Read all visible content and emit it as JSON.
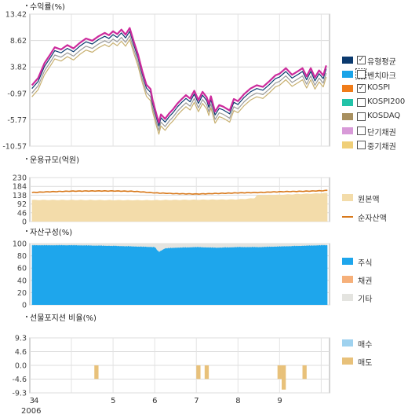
{
  "chart_data": [
    {
      "type": "line",
      "title": "수익률(%)",
      "yticks": [
        "13.42",
        "8.62",
        "3.82",
        "-0.97",
        "-5.77",
        "-10.57"
      ],
      "ylim": [
        -10.57,
        13.42
      ],
      "grid": true,
      "legend_position": "right",
      "x_tick_labels": [
        {
          "label": "3",
          "month": 3.05
        },
        {
          "label": "4",
          "month": 3.15
        },
        {
          "label": "5",
          "month": 5.0
        },
        {
          "label": "6",
          "month": 6.0
        },
        {
          "label": "7",
          "month": 7.0
        },
        {
          "label": "8",
          "month": 8.0
        },
        {
          "label": "9",
          "month": 9.0
        }
      ],
      "x_year_label": "2006",
      "xlim_month": [
        3.0,
        10.2
      ],
      "series": [
        {
          "name": "유형평균",
          "color": "#0b3a6e",
          "checked": true
        },
        {
          "name": "벤치마크",
          "color": "#19a3e8",
          "checked": false
        },
        {
          "name": "KOSPI",
          "color": "#f07c1a",
          "checked": true
        },
        {
          "name": "KOSPI200",
          "color": "#22c3a8",
          "checked": false
        },
        {
          "name": "KOSDAQ",
          "color": "#a89060",
          "checked": false
        },
        {
          "name": "단기채권",
          "color": "#d89ad8",
          "checked": false
        },
        {
          "name": "중기채권",
          "color": "#f0cf78",
          "checked": false
        }
      ],
      "plotted": [
        {
          "key": "fund",
          "color": "#cc2a9c",
          "points": [
            [
              3.05,
              0.5
            ],
            [
              3.2,
              1.8
            ],
            [
              3.35,
              4.5
            ],
            [
              3.5,
              6.2
            ],
            [
              3.6,
              7.4
            ],
            [
              3.75,
              7.0
            ],
            [
              3.9,
              7.8
            ],
            [
              4.05,
              7.2
            ],
            [
              4.2,
              8.2
            ],
            [
              4.35,
              9.0
            ],
            [
              4.5,
              8.6
            ],
            [
              4.65,
              9.4
            ],
            [
              4.8,
              10.0
            ],
            [
              4.9,
              9.6
            ],
            [
              5.0,
              10.3
            ],
            [
              5.1,
              9.8
            ],
            [
              5.2,
              10.6
            ],
            [
              5.3,
              9.7
            ],
            [
              5.4,
              10.9
            ],
            [
              5.5,
              8.4
            ],
            [
              5.6,
              6.1
            ],
            [
              5.7,
              3.1
            ],
            [
              5.8,
              0.6
            ],
            [
              5.9,
              -0.2
            ],
            [
              5.95,
              -2.2
            ],
            [
              6.05,
              -5.0
            ],
            [
              6.1,
              -6.3
            ],
            [
              6.15,
              -4.8
            ],
            [
              6.25,
              -5.6
            ],
            [
              6.35,
              -4.6
            ],
            [
              6.45,
              -3.8
            ],
            [
              6.55,
              -2.8
            ],
            [
              6.65,
              -2.0
            ],
            [
              6.75,
              -1.3
            ],
            [
              6.85,
              -1.9
            ],
            [
              6.95,
              -0.5
            ],
            [
              7.05,
              -2.2
            ],
            [
              7.15,
              -0.7
            ],
            [
              7.25,
              -1.7
            ],
            [
              7.3,
              -2.9
            ],
            [
              7.35,
              -1.5
            ],
            [
              7.45,
              -4.3
            ],
            [
              7.55,
              -3.1
            ],
            [
              7.65,
              -3.4
            ],
            [
              7.8,
              -4.1
            ],
            [
              7.9,
              -2.0
            ],
            [
              8.0,
              -2.4
            ],
            [
              8.15,
              -1.1
            ],
            [
              8.3,
              -0.1
            ],
            [
              8.45,
              0.5
            ],
            [
              8.6,
              0.2
            ],
            [
              8.75,
              1.2
            ],
            [
              8.9,
              2.3
            ],
            [
              9.0,
              2.6
            ],
            [
              9.15,
              3.6
            ],
            [
              9.3,
              2.4
            ],
            [
              9.45,
              3.1
            ],
            [
              9.55,
              3.6
            ],
            [
              9.65,
              2.1
            ],
            [
              9.75,
              3.6
            ],
            [
              9.85,
              1.9
            ],
            [
              9.95,
              3.2
            ],
            [
              10.05,
              2.3
            ],
            [
              10.12,
              4.1
            ]
          ]
        },
        {
          "key": "type_avg",
          "color": "#0b3a6e",
          "offset": -0.6
        },
        {
          "key": "kospi",
          "color": "#9a9a9a",
          "offset": -1.4
        },
        {
          "key": "kosdaq",
          "color": "#c8b070",
          "offset": -2.1
        }
      ]
    },
    {
      "type": "area",
      "title": "운용규모(억원)",
      "yticks": [
        "230",
        "184",
        "138",
        "92",
        "46",
        "0"
      ],
      "ylim": [
        0,
        230
      ],
      "grid": true,
      "legend_position": "right",
      "series": [
        {
          "name": "원본액",
          "color": "#f3dcaa",
          "type": "area",
          "points": [
            [
              3.05,
              113
            ],
            [
              4.0,
              113
            ],
            [
              5.0,
              112
            ],
            [
              6.0,
              112
            ],
            [
              7.0,
              114
            ],
            [
              8.0,
              116
            ],
            [
              8.4,
              122
            ],
            [
              8.45,
              138
            ],
            [
              9.0,
              140
            ],
            [
              9.5,
              144
            ],
            [
              10.0,
              148
            ],
            [
              10.15,
              150
            ]
          ]
        },
        {
          "name": "순자산액",
          "color": "#d8781a",
          "type": "line",
          "points": [
            [
              3.05,
              152
            ],
            [
              3.5,
              156
            ],
            [
              4.0,
              159
            ],
            [
              4.5,
              160
            ],
            [
              5.0,
              160
            ],
            [
              5.5,
              158
            ],
            [
              6.0,
              150
            ],
            [
              6.5,
              146
            ],
            [
              7.0,
              144
            ],
            [
              7.5,
              147
            ],
            [
              8.0,
              150
            ],
            [
              8.5,
              152
            ],
            [
              9.0,
              156
            ],
            [
              9.5,
              158
            ],
            [
              10.0,
              161
            ],
            [
              10.15,
              163
            ]
          ]
        }
      ]
    },
    {
      "type": "area",
      "title": "자산구성(%)",
      "yticks": [
        "100",
        "80",
        "60",
        "40",
        "20",
        "0"
      ],
      "ylim": [
        0,
        100
      ],
      "grid": true,
      "legend_position": "right",
      "series": [
        {
          "name": "주식",
          "color": "#1ea6ec",
          "points": [
            [
              3.05,
              98
            ],
            [
              4.0,
              98
            ],
            [
              5.0,
              97
            ],
            [
              6.0,
              95
            ],
            [
              6.1,
              87
            ],
            [
              6.25,
              93
            ],
            [
              6.5,
              94
            ],
            [
              7.0,
              95
            ],
            [
              7.5,
              94
            ],
            [
              8.0,
              95
            ],
            [
              8.5,
              95
            ],
            [
              9.0,
              96
            ],
            [
              9.5,
              97
            ],
            [
              10.0,
              98
            ],
            [
              10.15,
              98
            ]
          ]
        },
        {
          "name": "채권",
          "color": "#f6b07a",
          "points": []
        },
        {
          "name": "기타",
          "color": "#e4e4e0"
        }
      ]
    },
    {
      "type": "bar",
      "title": "선물포지션 비율(%)",
      "yticks": [
        "9.3",
        "4.6",
        "0.0",
        "-4.6",
        "-9.3"
      ],
      "ylim": [
        -9.3,
        9.3
      ],
      "grid": true,
      "legend_position": "right",
      "series": [
        {
          "name": "매수",
          "color": "#9fd2ef",
          "bars": []
        },
        {
          "name": "매도",
          "color": "#e8c17a",
          "bars": [
            [
              4.55,
              4.65,
              -4.6
            ],
            [
              7.0,
              7.1,
              -4.6
            ],
            [
              7.2,
              7.3,
              -4.6
            ],
            [
              8.95,
              9.05,
              -4.6
            ],
            [
              9.05,
              9.15,
              -8.2
            ],
            [
              9.55,
              9.65,
              -4.6
            ]
          ]
        }
      ]
    }
  ]
}
